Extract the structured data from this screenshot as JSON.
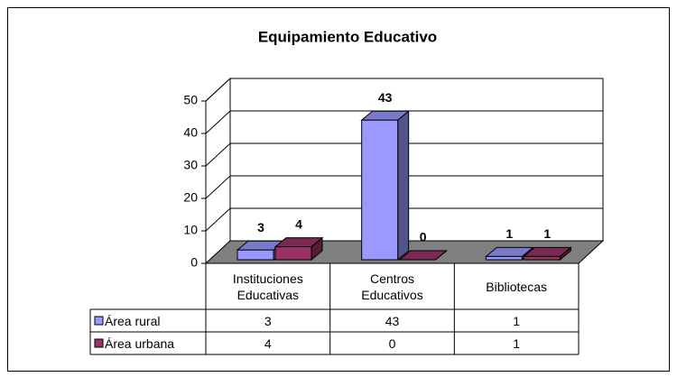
{
  "chart_data": {
    "type": "bar3d",
    "title": "Equipamiento Educativo",
    "categories": [
      "Instituciones Educativas",
      "Centros Educativos",
      "Bibliotecas"
    ],
    "series": [
      {
        "name": "Área rural",
        "color": "#9999ff",
        "values": [
          3,
          43,
          1
        ]
      },
      {
        "name": "Área urbana",
        "color": "#993366",
        "values": [
          4,
          0,
          1
        ]
      }
    ],
    "ylim": [
      0,
      50
    ],
    "yticks": [
      0,
      10,
      20,
      30,
      40,
      50
    ],
    "grid": true,
    "data_table": true
  }
}
